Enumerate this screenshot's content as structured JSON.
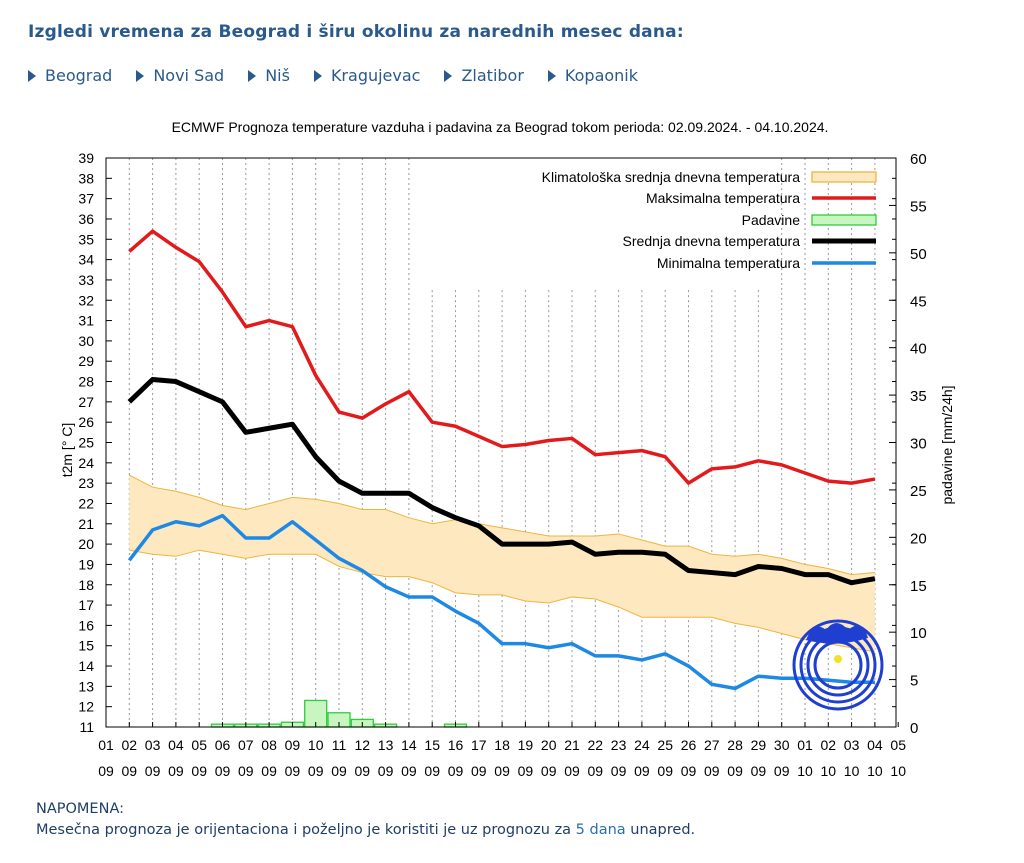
{
  "page": {
    "heading": "Izgledi vremena za Beograd i širu okolinu za narednih mesec dana:",
    "cities": [
      "Beograd",
      "Novi Sad",
      "Niš",
      "Kragujevac",
      "Zlatibor",
      "Kopaonik"
    ],
    "note_title": "NAPOMENA:",
    "note_before": "Mesečna prognoza je orijentaciona i poželjno je koristiti je uz prognozu za ",
    "note_link": "5 dana",
    "note_after": " unapred."
  },
  "colors": {
    "max": "#e31a1c",
    "mean": "#000000",
    "min": "#1e88e5",
    "clim_fill": "#fde8c0",
    "clim_stroke": "#f0b43c",
    "precip_fill": "#c9f5c0",
    "precip_stroke": "#2ecc40",
    "link": "#2a5a8c"
  },
  "chart_data": {
    "type": "line",
    "title": "ECMWF Prognoza temperature vazduha i padavina za Beograd tokom perioda: 02.09.2024. - 04.10.2024.",
    "ylabel": "t2m [° C]",
    "y2label": "padavine [mm/24h]",
    "ylim": [
      11,
      39
    ],
    "y2lim": [
      0,
      60
    ],
    "y_ticks": [
      11,
      12,
      13,
      14,
      15,
      16,
      17,
      18,
      19,
      20,
      21,
      22,
      23,
      24,
      25,
      26,
      27,
      28,
      29,
      30,
      31,
      32,
      33,
      34,
      35,
      36,
      37,
      38,
      39
    ],
    "y2_ticks": [
      0,
      5,
      10,
      15,
      20,
      25,
      30,
      35,
      40,
      45,
      50,
      55,
      60
    ],
    "x_ticks": [
      [
        "01",
        "09"
      ],
      [
        "02",
        "09"
      ],
      [
        "03",
        "09"
      ],
      [
        "04",
        "09"
      ],
      [
        "05",
        "09"
      ],
      [
        "06",
        "09"
      ],
      [
        "07",
        "09"
      ],
      [
        "08",
        "09"
      ],
      [
        "09",
        "09"
      ],
      [
        "10",
        "09"
      ],
      [
        "11",
        "09"
      ],
      [
        "12",
        "09"
      ],
      [
        "13",
        "09"
      ],
      [
        "14",
        "09"
      ],
      [
        "15",
        "09"
      ],
      [
        "16",
        "09"
      ],
      [
        "17",
        "09"
      ],
      [
        "18",
        "09"
      ],
      [
        "19",
        "09"
      ],
      [
        "20",
        "09"
      ],
      [
        "21",
        "09"
      ],
      [
        "22",
        "09"
      ],
      [
        "23",
        "09"
      ],
      [
        "24",
        "09"
      ],
      [
        "25",
        "09"
      ],
      [
        "26",
        "09"
      ],
      [
        "27",
        "09"
      ],
      [
        "28",
        "09"
      ],
      [
        "29",
        "09"
      ],
      [
        "30",
        "09"
      ],
      [
        "01",
        "10"
      ],
      [
        "02",
        "10"
      ],
      [
        "03",
        "10"
      ],
      [
        "04",
        "10"
      ],
      [
        "05",
        "10"
      ]
    ],
    "grid": "vertical dotted",
    "legend_position": "top-right",
    "legend": [
      "Klimatološka srednja dnevna temperatura",
      "Maksimalna temperatura",
      "Padavine",
      "Srednja dnevna temperatura",
      "Minimalna temperatura"
    ],
    "series": [
      {
        "name": "Maksimalna temperatura",
        "values": [
          34.4,
          35.4,
          34.6,
          33.9,
          32.4,
          30.7,
          31.0,
          30.7,
          28.3,
          26.5,
          26.2,
          26.9,
          27.5,
          26.0,
          25.8,
          25.3,
          24.8,
          24.9,
          25.1,
          25.2,
          24.4,
          24.5,
          24.6,
          24.3,
          23.0,
          23.7,
          23.8,
          24.1,
          23.9,
          23.5,
          23.1,
          23.0,
          23.2
        ]
      },
      {
        "name": "Srednja dnevna temperatura",
        "values": [
          27.0,
          28.1,
          28.0,
          27.5,
          27.0,
          25.5,
          25.7,
          25.9,
          24.3,
          23.1,
          22.5,
          22.5,
          22.5,
          21.8,
          21.3,
          20.9,
          20.0,
          20.0,
          20.0,
          20.1,
          19.5,
          19.6,
          19.6,
          19.5,
          18.7,
          18.6,
          18.5,
          18.9,
          18.8,
          18.5,
          18.5,
          18.1,
          18.3
        ]
      },
      {
        "name": "Minimalna temperatura",
        "values": [
          19.2,
          20.7,
          21.1,
          20.9,
          21.4,
          20.3,
          20.3,
          21.1,
          20.2,
          19.3,
          18.7,
          17.9,
          17.4,
          17.4,
          16.7,
          16.1,
          15.1,
          15.1,
          14.9,
          15.1,
          14.5,
          14.5,
          14.3,
          14.6,
          14.0,
          13.1,
          12.9,
          13.5,
          13.4,
          13.4,
          13.3,
          13.2,
          13.2
        ]
      },
      {
        "name": "Klimatološka srednja dnevna temperatura",
        "upper": [
          23.4,
          22.8,
          22.6,
          22.3,
          21.9,
          21.7,
          22.0,
          22.3,
          22.2,
          22.0,
          21.7,
          21.7,
          21.3,
          21.0,
          21.2,
          21.0,
          20.8,
          20.6,
          20.4,
          20.4,
          20.4,
          20.5,
          20.2,
          19.9,
          19.9,
          19.5,
          19.4,
          19.5,
          19.3,
          19.0,
          18.8,
          18.5,
          18.6
        ],
        "lower": [
          19.7,
          19.5,
          19.4,
          19.7,
          19.5,
          19.3,
          19.5,
          19.5,
          19.5,
          18.9,
          18.6,
          18.4,
          18.4,
          18.1,
          17.6,
          17.5,
          17.5,
          17.2,
          17.1,
          17.4,
          17.3,
          16.9,
          16.4,
          16.4,
          16.4,
          16.4,
          16.1,
          15.9,
          15.6,
          15.3,
          15.1,
          14.9,
          14.7
        ]
      },
      {
        "name": "Padavine",
        "bar_values": [
          0,
          0,
          0,
          0,
          0.3,
          0.3,
          0.3,
          0.5,
          2.8,
          1.5,
          0.8,
          0.3,
          0,
          0,
          0.3,
          0,
          0,
          0,
          0,
          0,
          0,
          0,
          0,
          0,
          0,
          0,
          0,
          0,
          0,
          0,
          0,
          0,
          0
        ],
        "axis": "y2"
      }
    ]
  }
}
